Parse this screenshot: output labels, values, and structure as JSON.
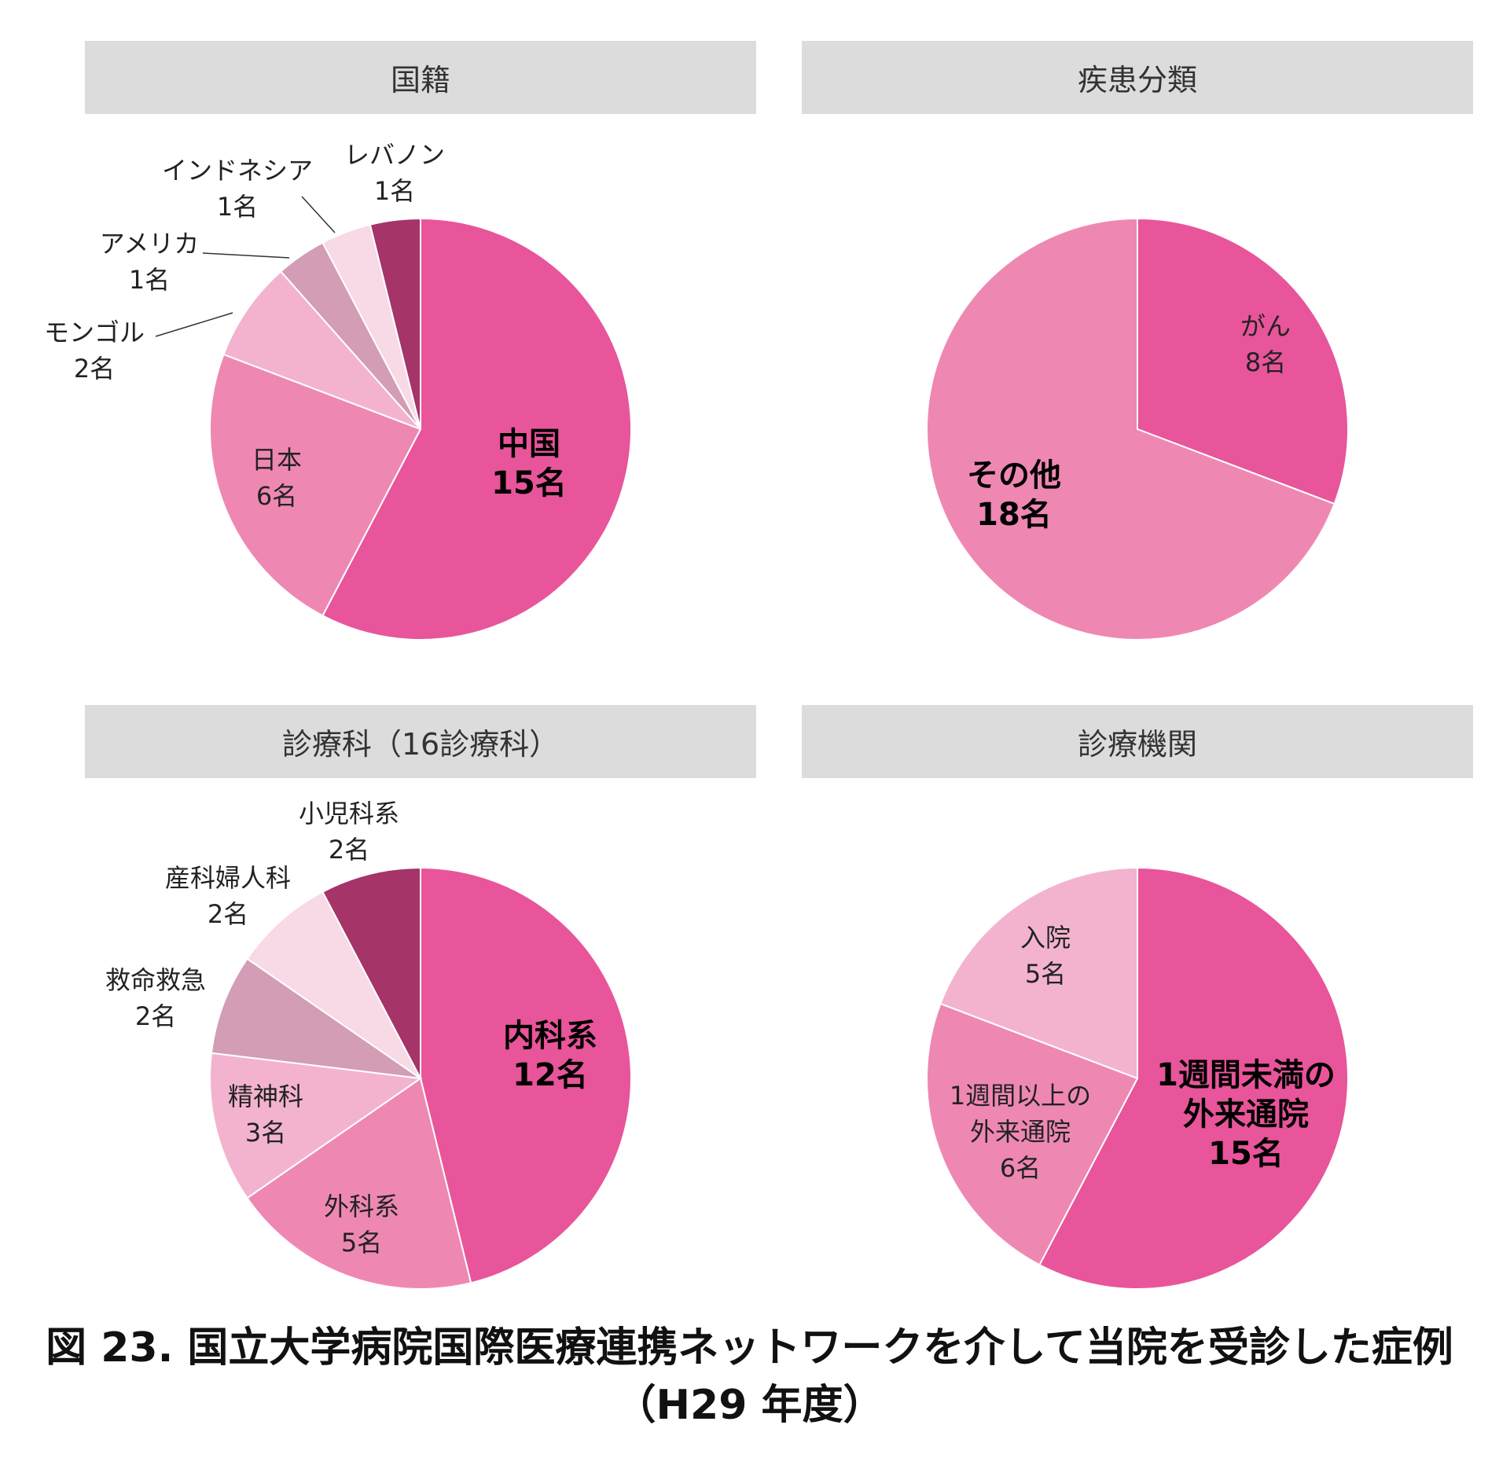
{
  "chart_data": [
    {
      "type": "pie",
      "title": "国籍",
      "slices": [
        {
          "label": "中国",
          "value_label": "15名",
          "value": 15,
          "color": "#e8559a",
          "bold": true
        },
        {
          "label": "日本",
          "value_label": "6名",
          "value": 6,
          "color": "#ee88b3"
        },
        {
          "label": "モンゴル",
          "value_label": "2名",
          "value": 2,
          "color": "#f3b3cf"
        },
        {
          "label": "アメリカ",
          "value_label": "1名",
          "value": 1,
          "color": "#d39db6"
        },
        {
          "label": "インドネシア",
          "value_label": "1名",
          "value": 1,
          "color": "#f8d9e6"
        },
        {
          "label": "レバノン",
          "value_label": "1名",
          "value": 1,
          "color": "#a53468"
        }
      ]
    },
    {
      "type": "pie",
      "title": "疾患分類",
      "slices": [
        {
          "label": "がん",
          "value_label": "8名",
          "value": 8,
          "color": "#e8559a"
        },
        {
          "label": "その他",
          "value_label": "18名",
          "value": 18,
          "color": "#ee88b3",
          "bold": true
        }
      ]
    },
    {
      "type": "pie",
      "title": "診療科（16診療科）",
      "slices": [
        {
          "label": "内科系",
          "value_label": "12名",
          "value": 12,
          "color": "#e8559a",
          "bold": true
        },
        {
          "label": "外科系",
          "value_label": "5名",
          "value": 5,
          "color": "#ee88b3"
        },
        {
          "label": "精神科",
          "value_label": "3名",
          "value": 3,
          "color": "#f3b3cf"
        },
        {
          "label": "救命救急",
          "value_label": "2名",
          "value": 2,
          "color": "#d39db6"
        },
        {
          "label": "産科婦人科",
          "value_label": "2名",
          "value": 2,
          "color": "#f8d9e6"
        },
        {
          "label": "小児科系",
          "value_label": "2名",
          "value": 2,
          "color": "#a53468"
        }
      ]
    },
    {
      "type": "pie",
      "title": "診療機関",
      "slices": [
        {
          "label": "1週間未満の外来通院",
          "value_label": "15名",
          "value": 15,
          "color": "#e8559a",
          "bold": true
        },
        {
          "label": "1週間以上の外来通院",
          "value_label": "6名",
          "value": 6,
          "color": "#ee88b3"
        },
        {
          "label": "入院",
          "value_label": "5名",
          "value": 5,
          "color": "#f3b3cf"
        }
      ]
    }
  ],
  "caption": {
    "line1": "図 23.  国立大学病院国際医療連携ネットワークを介して当院を受診した症例",
    "line2": "（H29 年度）"
  }
}
